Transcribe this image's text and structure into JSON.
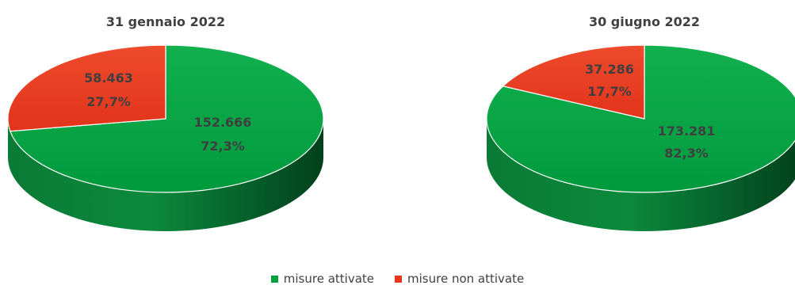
{
  "chart_data": [
    {
      "type": "pie",
      "title": "31 gennaio 2022",
      "slices": [
        {
          "series": "misure non attivate",
          "value": "58.463",
          "percent": "27,7%",
          "share": 0.277
        },
        {
          "series": "misure attivate",
          "value": "152.666",
          "percent": "72,3%",
          "share": 0.723
        }
      ]
    },
    {
      "type": "pie",
      "title": "30 giugno 2022",
      "slices": [
        {
          "series": "misure non attivate",
          "value": "37.286",
          "percent": "17,7%",
          "share": 0.177
        },
        {
          "series": "misure attivate",
          "value": "173.281",
          "percent": "82,3%",
          "share": 0.823
        }
      ]
    }
  ],
  "legend": {
    "position": "bottom",
    "items": [
      {
        "label": "misure attivate",
        "color": "#00a040"
      },
      {
        "label": "misure non attivate",
        "color": "#e8361d"
      }
    ]
  },
  "colors": {
    "misure attivate": "#00a040",
    "misure attivate dark": "#045c28",
    "misure non attivate": "#e8361d",
    "misure non attivate dark": "#8c2010"
  }
}
